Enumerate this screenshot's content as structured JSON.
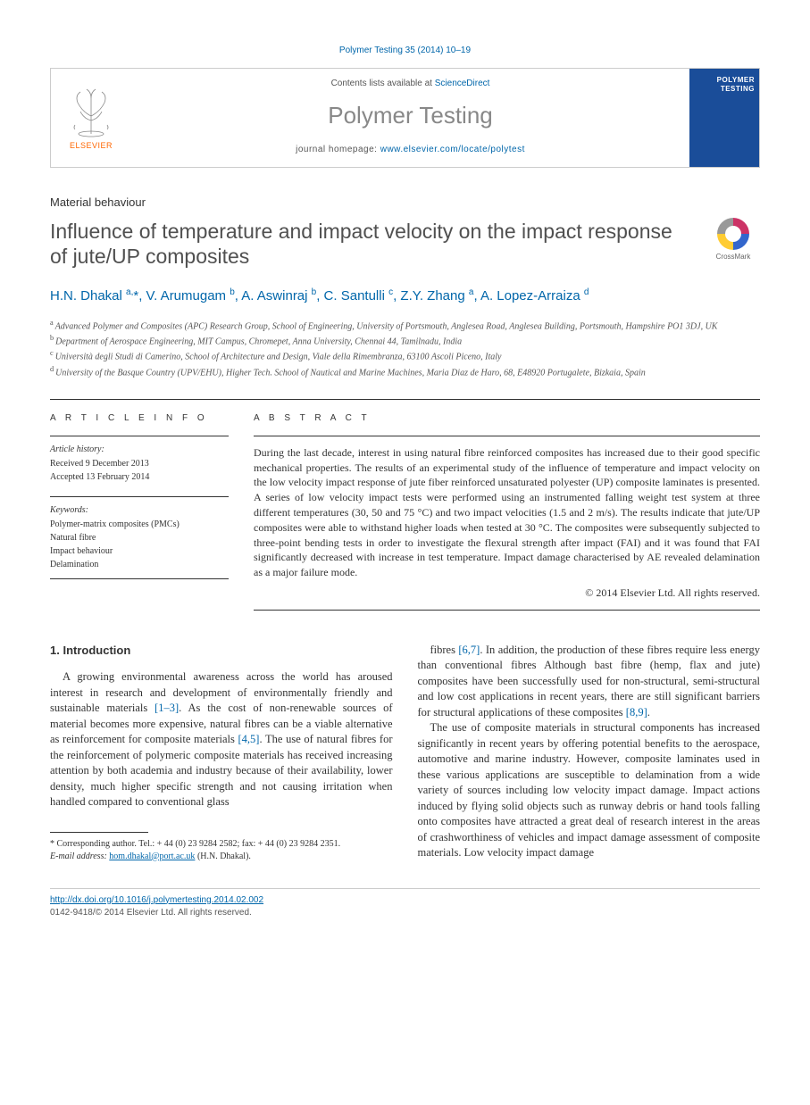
{
  "citation": "Polymer Testing 35 (2014) 10–19",
  "header": {
    "contents_prefix": "Contents lists available at ",
    "contents_link": "ScienceDirect",
    "journal_title": "Polymer Testing",
    "homepage_prefix": "journal homepage: ",
    "homepage_url": "www.elsevier.com/locate/polytest",
    "publisher": "ELSEVIER",
    "cover_title": "POLYMER TESTING"
  },
  "article": {
    "category": "Material behaviour",
    "title": "Influence of temperature and impact velocity on the impact response of jute/UP composites",
    "crossmark_label": "CrossMark"
  },
  "authors_html": "H.N. Dhakal <sup>a,</sup>*, V. Arumugam <sup>b</sup>, A. Aswinraj <sup>b</sup>, C. Santulli <sup>c</sup>, Z.Y. Zhang <sup>a</sup>, A. Lopez-Arraiza <sup>d</sup>",
  "affiliations": [
    {
      "sup": "a",
      "text": "Advanced Polymer and Composites (APC) Research Group, School of Engineering, University of Portsmouth, Anglesea Road, Anglesea Building, Portsmouth, Hampshire PO1 3DJ, UK"
    },
    {
      "sup": "b",
      "text": "Department of Aerospace Engineering, MIT Campus, Chromepet, Anna University, Chennai 44, Tamilnadu, India"
    },
    {
      "sup": "c",
      "text": "Università degli Studi di Camerino, School of Architecture and Design, Viale della Rimembranza, 63100 Ascoli Piceno, Italy"
    },
    {
      "sup": "d",
      "text": "University of the Basque Country (UPV/EHU), Higher Tech. School of Nautical and Marine Machines, Maria Diaz de Haro, 68, E48920 Portugalete, Bizkaia, Spain"
    }
  ],
  "article_info": {
    "heading": "A R T I C L E   I N F O",
    "history_label": "Article history:",
    "received": "Received 9 December 2013",
    "accepted": "Accepted 13 February 2014",
    "keywords_label": "Keywords:",
    "keywords": [
      "Polymer-matrix composites (PMCs)",
      "Natural fibre",
      "Impact behaviour",
      "Delamination"
    ]
  },
  "abstract": {
    "heading": "A B S T R A C T",
    "text": "During the last decade, interest in using natural fibre reinforced composites has increased due to their good specific mechanical properties. The results of an experimental study of the influence of temperature and impact velocity on the low velocity impact response of jute fiber reinforced unsaturated polyester (UP) composite laminates is presented. A series of low velocity impact tests were performed using an instrumented falling weight test system at three different temperatures (30, 50 and 75 °C) and two impact velocities (1.5 and 2 m/s). The results indicate that jute/UP composites were able to withstand higher loads when tested at 30 °C. The composites were subsequently subjected to three-point bending tests in order to investigate the flexural strength after impact (FAI) and it was found that FAI significantly decreased with increase in test temperature. Impact damage characterised by AE revealed delamination as a major failure mode.",
    "copyright": "© 2014 Elsevier Ltd. All rights reserved."
  },
  "body": {
    "section_number": "1.",
    "section_title": "Introduction",
    "col1_p1": "A growing environmental awareness across the world has aroused interest in research and development of environmentally friendly and sustainable materials [1–3]. As the cost of non-renewable sources of material becomes more expensive, natural fibres can be a viable alternative as reinforcement for composite materials [4,5]. The use of natural fibres for the reinforcement of polymeric composite materials has received increasing attention by both academia and industry because of their availability, lower density, much higher specific strength and not causing irritation when handled compared to conventional glass",
    "col2_p1": "fibres [6,7]. In addition, the production of these fibres require less energy than conventional fibres Although bast fibre (hemp, flax and jute) composites have been successfully used for non-structural, semi-structural and low cost applications in recent years, there are still significant barriers for structural applications of these composites [8,9].",
    "col2_p2": "The use of composite materials in structural components has increased significantly in recent years by offering potential benefits to the aerospace, automotive and marine industry. However, composite laminates used in these various applications are susceptible to delamination from a wide variety of sources including low velocity impact damage. Impact actions induced by flying solid objects such as runway debris or hand tools falling onto composites have attracted a great deal of research interest in the areas of crashworthiness of vehicles and impact damage assessment of composite materials. Low velocity impact damage"
  },
  "footnote": {
    "corresponding": "* Corresponding author. Tel.: + 44 (0) 23 9284 2582; fax: + 44 (0) 23 9284 2351.",
    "email_label": "E-mail address:",
    "email": "hom.dhakal@port.ac.uk",
    "email_author": "(H.N. Dhakal)."
  },
  "footer": {
    "doi": "http://dx.doi.org/10.1016/j.polymertesting.2014.02.002",
    "issn_line": "0142-9418/© 2014 Elsevier Ltd. All rights reserved."
  },
  "colors": {
    "link": "#0066aa",
    "text": "#333333",
    "muted": "#555555",
    "title_gray": "#888888",
    "orange": "#ff6600",
    "cover_blue": "#1a4d99",
    "border": "#cccccc"
  },
  "typography": {
    "body_font": "Georgia, serif",
    "sans_font": "Arial, sans-serif",
    "title_size_pt": 17,
    "journal_title_size_pt": 20,
    "body_size_pt": 9.5,
    "abstract_size_pt": 9,
    "small_size_pt": 7.5
  }
}
